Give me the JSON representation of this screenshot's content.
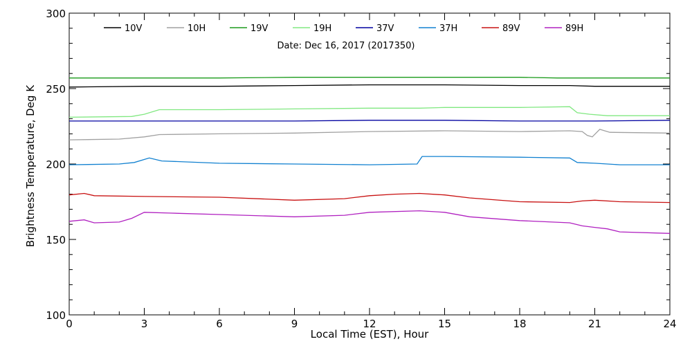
{
  "chart_data": {
    "type": "line",
    "title": "Date: Dec 16, 2017 (2017350)",
    "xlabel": "Local Time (EST), Hour",
    "ylabel": "Brightness Temperature, Deg K",
    "xlim": [
      0,
      24
    ],
    "ylim": [
      100,
      300
    ],
    "xticks": [
      0,
      3,
      6,
      9,
      12,
      15,
      18,
      21,
      24
    ],
    "yticks": [
      100,
      150,
      200,
      250,
      300
    ],
    "grid": false,
    "legend_position": "top",
    "series": [
      {
        "name": "10V",
        "color": "#000000",
        "points": [
          [
            0,
            251
          ],
          [
            3,
            251.5
          ],
          [
            6,
            251.5
          ],
          [
            9,
            252
          ],
          [
            12,
            252.5
          ],
          [
            15,
            252.5
          ],
          [
            18,
            252
          ],
          [
            20,
            252
          ],
          [
            21,
            251.5
          ],
          [
            24,
            251.5
          ]
        ]
      },
      {
        "name": "10H",
        "color": "#a0a0a0",
        "points": [
          [
            0,
            216
          ],
          [
            2,
            216.5
          ],
          [
            3,
            218
          ],
          [
            3.6,
            219.5
          ],
          [
            6,
            220
          ],
          [
            9,
            220.5
          ],
          [
            12,
            221.5
          ],
          [
            15,
            222
          ],
          [
            18,
            221.5
          ],
          [
            20,
            222
          ],
          [
            20.5,
            221.5
          ],
          [
            20.7,
            219
          ],
          [
            20.9,
            218
          ],
          [
            21.2,
            223
          ],
          [
            21.6,
            221
          ],
          [
            24,
            220.5
          ]
        ]
      },
      {
        "name": "19V",
        "color": "#1a9a1a",
        "points": [
          [
            0,
            257
          ],
          [
            3,
            257
          ],
          [
            6,
            257
          ],
          [
            9,
            257.5
          ],
          [
            12,
            257.5
          ],
          [
            15,
            257.5
          ],
          [
            18,
            257.5
          ],
          [
            19.5,
            257
          ],
          [
            24,
            257
          ]
        ]
      },
      {
        "name": "19H",
        "color": "#80e880",
        "points": [
          [
            0,
            231
          ],
          [
            2.5,
            231.5
          ],
          [
            3,
            233
          ],
          [
            3.6,
            236
          ],
          [
            6,
            236
          ],
          [
            9,
            236.5
          ],
          [
            12,
            237
          ],
          [
            14,
            237
          ],
          [
            15,
            237.5
          ],
          [
            18,
            237.5
          ],
          [
            20,
            238
          ],
          [
            20.3,
            234
          ],
          [
            20.8,
            233
          ],
          [
            21.5,
            232
          ],
          [
            24,
            232
          ]
        ]
      },
      {
        "name": "37V",
        "color": "#0000a0",
        "points": [
          [
            0,
            228.5
          ],
          [
            3,
            228.5
          ],
          [
            6,
            228.5
          ],
          [
            9,
            228.5
          ],
          [
            12,
            229
          ],
          [
            15,
            229
          ],
          [
            18,
            228.5
          ],
          [
            21,
            228.5
          ],
          [
            24,
            229
          ]
        ]
      },
      {
        "name": "37H",
        "color": "#1080d0",
        "points": [
          [
            0,
            199.5
          ],
          [
            2,
            200
          ],
          [
            2.6,
            201
          ],
          [
            3.2,
            204
          ],
          [
            3.7,
            202
          ],
          [
            6,
            200.5
          ],
          [
            9,
            200
          ],
          [
            12,
            199.5
          ],
          [
            13.9,
            200
          ],
          [
            14.1,
            205
          ],
          [
            15,
            205
          ],
          [
            18,
            204.5
          ],
          [
            20,
            204
          ],
          [
            20.3,
            201
          ],
          [
            21,
            200.5
          ],
          [
            22,
            199.5
          ],
          [
            24,
            199.5
          ]
        ]
      },
      {
        "name": "89V",
        "color": "#c81010",
        "points": [
          [
            0,
            179.5
          ],
          [
            0.6,
            180.5
          ],
          [
            1,
            179
          ],
          [
            3,
            178.5
          ],
          [
            6,
            178
          ],
          [
            9,
            176
          ],
          [
            11,
            177
          ],
          [
            12,
            179
          ],
          [
            13,
            180
          ],
          [
            14,
            180.5
          ],
          [
            15,
            179.5
          ],
          [
            16,
            177.5
          ],
          [
            18,
            175
          ],
          [
            20,
            174.5
          ],
          [
            20.5,
            175.5
          ],
          [
            21,
            176
          ],
          [
            22,
            175
          ],
          [
            24,
            174.5
          ]
        ]
      },
      {
        "name": "89H",
        "color": "#b020c0",
        "points": [
          [
            0,
            162
          ],
          [
            0.6,
            163
          ],
          [
            1,
            161
          ],
          [
            2,
            161.5
          ],
          [
            2.5,
            164
          ],
          [
            3,
            168
          ],
          [
            4,
            167.5
          ],
          [
            6,
            166.5
          ],
          [
            9,
            165
          ],
          [
            11,
            166
          ],
          [
            12,
            168
          ],
          [
            14,
            169
          ],
          [
            15,
            168
          ],
          [
            16,
            165
          ],
          [
            18,
            162.5
          ],
          [
            20,
            161
          ],
          [
            20.5,
            159
          ],
          [
            21,
            158
          ],
          [
            21.5,
            157
          ],
          [
            22,
            155
          ],
          [
            24,
            154
          ]
        ]
      }
    ]
  }
}
